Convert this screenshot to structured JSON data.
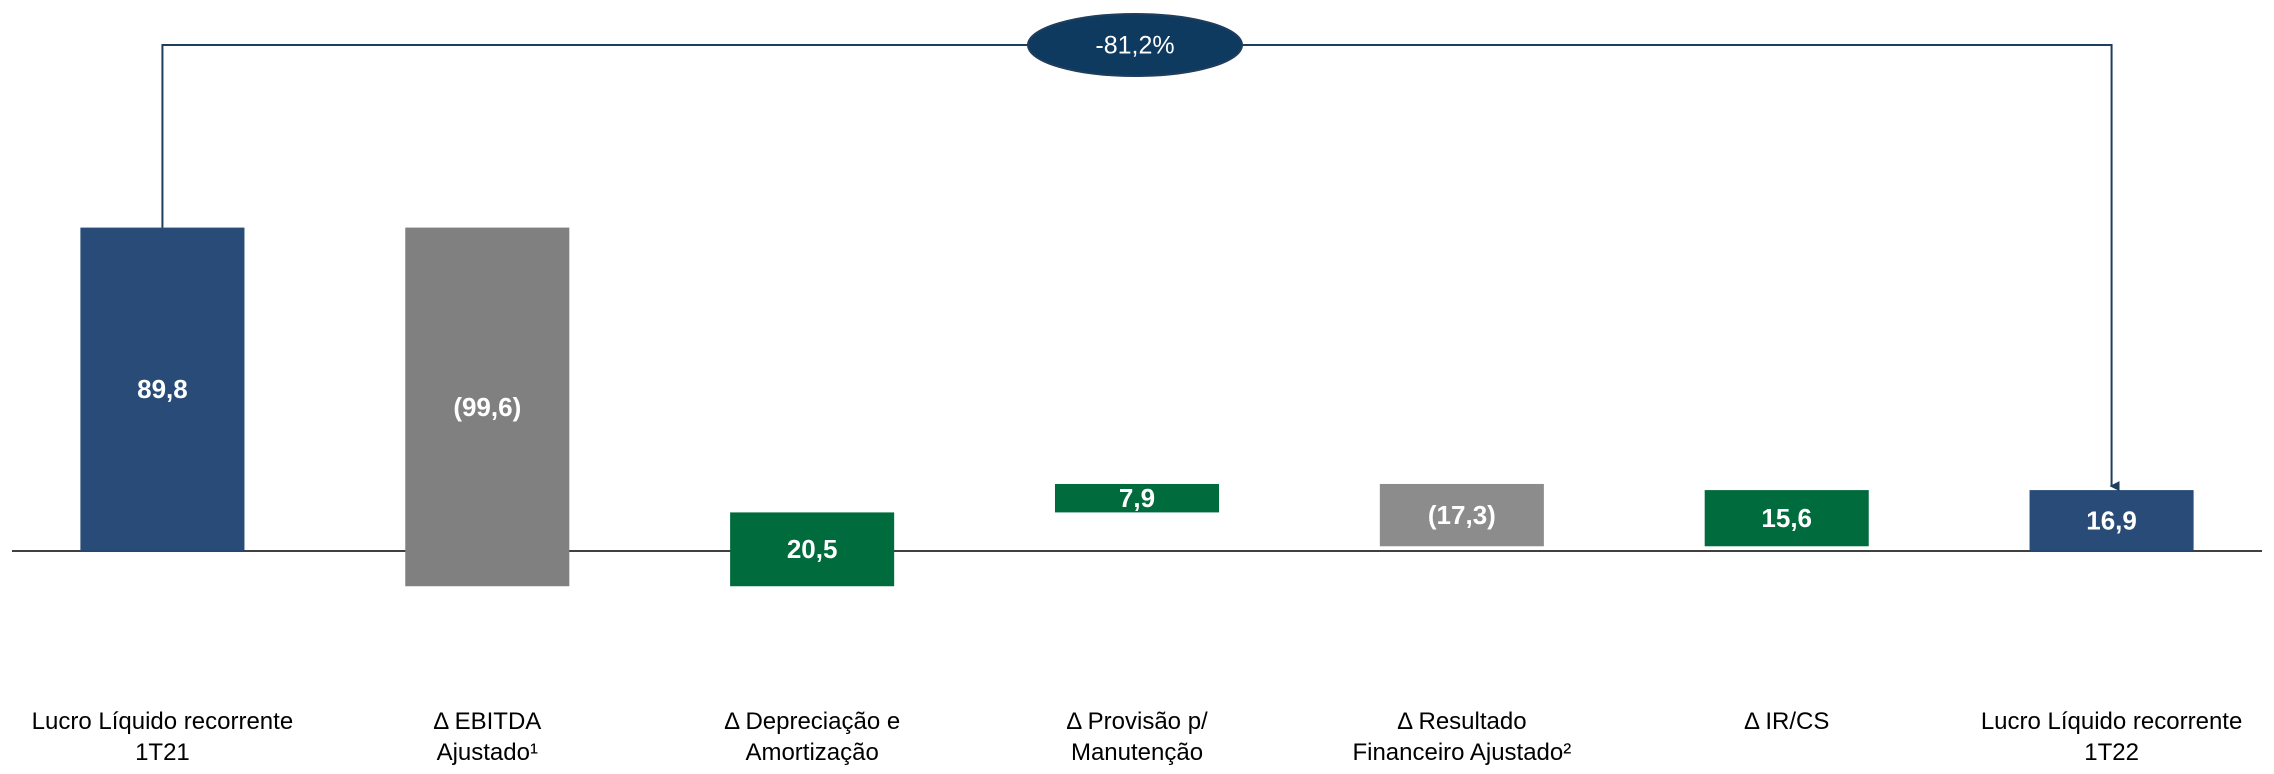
{
  "chart_data": {
    "type": "waterfall",
    "categories": [
      [
        "Lucro Líquido recorrente",
        "1T21"
      ],
      [
        "Δ EBITDA",
        "Ajustado¹"
      ],
      [
        "Δ Depreciação e",
        "Amortização"
      ],
      [
        "Δ Provisão p/",
        "Manutenção"
      ],
      [
        "Δ Resultado",
        "Financeiro Ajustado²"
      ],
      [
        "Δ IR/CS"
      ],
      [
        "Lucro Líquido recorrente",
        "1T22"
      ]
    ],
    "values": [
      89.8,
      -99.6,
      20.5,
      7.9,
      -17.3,
      15.6,
      16.9
    ],
    "value_labels": [
      "89,8",
      "(99,6)",
      "20,5",
      "7,9",
      "(17,3)",
      "15,6",
      "16,9"
    ],
    "measure": [
      "absolute",
      "relative",
      "relative",
      "relative",
      "relative",
      "relative",
      "total"
    ],
    "colors": [
      "#284c77",
      "#808080",
      "#006b3c",
      "#006b3c",
      "#8c8c8c",
      "#006b3c",
      "#284c77"
    ],
    "annotation": "-81,2%",
    "ylim": [
      -60,
      153
    ]
  }
}
